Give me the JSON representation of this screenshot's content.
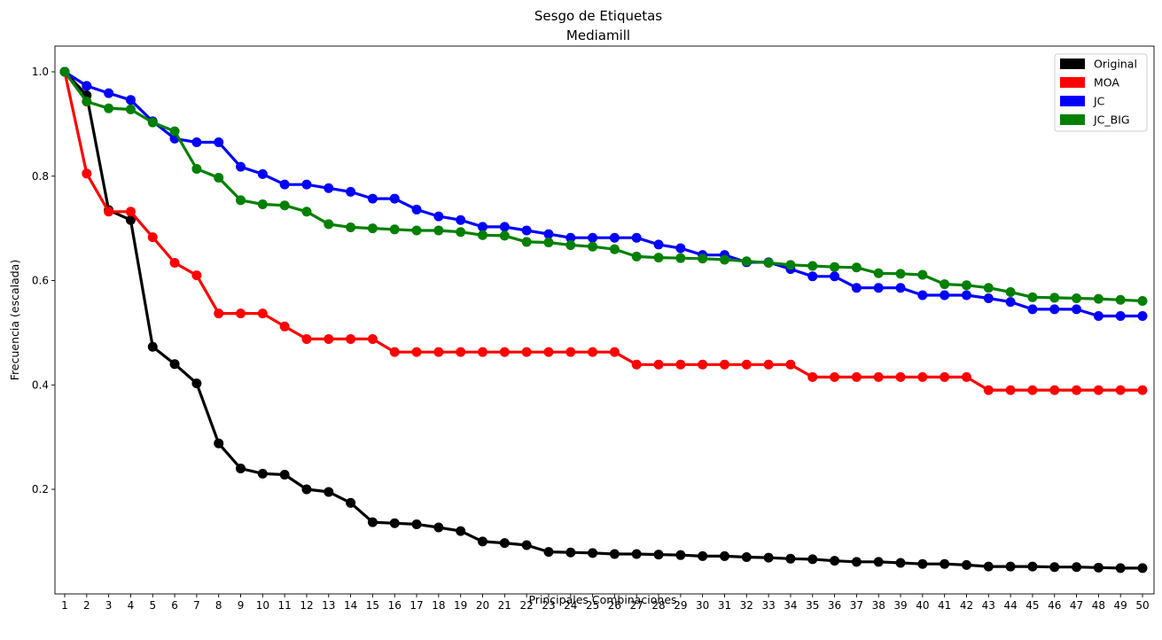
{
  "chart_data": {
    "type": "line",
    "title": "Sesgo de Etiquetas",
    "subtitle": "Mediamill",
    "xlabel": "Principales Combinaciones",
    "ylabel": "Frecuencia (escalada)",
    "ylim": [
      0.0,
      1.05
    ],
    "yticks": [
      0.2,
      0.4,
      0.6,
      0.8,
      1.0
    ],
    "ytick_labels": [
      "0.2",
      "0.4",
      "0.6",
      "0.8",
      "1.0"
    ],
    "categories": [
      "1",
      "2",
      "3",
      "4",
      "5",
      "6",
      "7",
      "8",
      "9",
      "10",
      "11",
      "12",
      "13",
      "14",
      "15",
      "16",
      "17",
      "18",
      "19",
      "20",
      "21",
      "22",
      "23",
      "24",
      "25",
      "26",
      "27",
      "28",
      "29",
      "30",
      "31",
      "32",
      "33",
      "34",
      "35",
      "36",
      "37",
      "38",
      "39",
      "40",
      "41",
      "42",
      "43",
      "44",
      "45",
      "46",
      "47",
      "48",
      "49",
      "50"
    ],
    "grid": false,
    "legend_position": "top-right",
    "series": [
      {
        "name": "Original",
        "color": "#000000",
        "values": [
          1.0,
          0.955,
          0.735,
          0.716,
          0.473,
          0.44,
          0.403,
          0.288,
          0.24,
          0.23,
          0.228,
          0.2,
          0.195,
          0.174,
          0.137,
          0.135,
          0.133,
          0.127,
          0.12,
          0.1,
          0.097,
          0.093,
          0.08,
          0.079,
          0.078,
          0.076,
          0.076,
          0.075,
          0.074,
          0.072,
          0.072,
          0.07,
          0.069,
          0.067,
          0.066,
          0.063,
          0.061,
          0.061,
          0.059,
          0.057,
          0.057,
          0.055,
          0.052,
          0.052,
          0.052,
          0.051,
          0.051,
          0.05,
          0.049,
          0.049
        ]
      },
      {
        "name": "MOA",
        "color": "#ff0000",
        "values": [
          1.0,
          0.805,
          0.732,
          0.732,
          0.683,
          0.634,
          0.61,
          0.537,
          0.537,
          0.537,
          0.512,
          0.488,
          0.488,
          0.488,
          0.488,
          0.463,
          0.463,
          0.463,
          0.463,
          0.463,
          0.463,
          0.463,
          0.463,
          0.463,
          0.463,
          0.463,
          0.439,
          0.439,
          0.439,
          0.439,
          0.439,
          0.439,
          0.439,
          0.439,
          0.415,
          0.415,
          0.415,
          0.415,
          0.415,
          0.415,
          0.415,
          0.415,
          0.39,
          0.39,
          0.39,
          0.39,
          0.39,
          0.39,
          0.39,
          0.39
        ]
      },
      {
        "name": "JC",
        "color": "#0000ff",
        "values": [
          1.0,
          0.973,
          0.959,
          0.946,
          0.905,
          0.872,
          0.865,
          0.865,
          0.818,
          0.804,
          0.784,
          0.784,
          0.777,
          0.77,
          0.757,
          0.757,
          0.736,
          0.723,
          0.716,
          0.703,
          0.703,
          0.696,
          0.689,
          0.682,
          0.682,
          0.682,
          0.682,
          0.669,
          0.662,
          0.649,
          0.649,
          0.635,
          0.635,
          0.622,
          0.608,
          0.608,
          0.586,
          0.586,
          0.586,
          0.572,
          0.572,
          0.572,
          0.566,
          0.559,
          0.545,
          0.545,
          0.545,
          0.532,
          0.532,
          0.532
        ]
      },
      {
        "name": "JC_BIG",
        "color": "#008000",
        "values": [
          1.0,
          0.943,
          0.93,
          0.928,
          0.903,
          0.886,
          0.814,
          0.797,
          0.754,
          0.746,
          0.744,
          0.732,
          0.708,
          0.702,
          0.7,
          0.698,
          0.696,
          0.696,
          0.693,
          0.687,
          0.686,
          0.674,
          0.673,
          0.668,
          0.665,
          0.66,
          0.646,
          0.644,
          0.643,
          0.642,
          0.64,
          0.637,
          0.634,
          0.63,
          0.628,
          0.626,
          0.625,
          0.614,
          0.613,
          0.611,
          0.593,
          0.591,
          0.586,
          0.578,
          0.568,
          0.567,
          0.566,
          0.565,
          0.563,
          0.561
        ]
      }
    ]
  }
}
